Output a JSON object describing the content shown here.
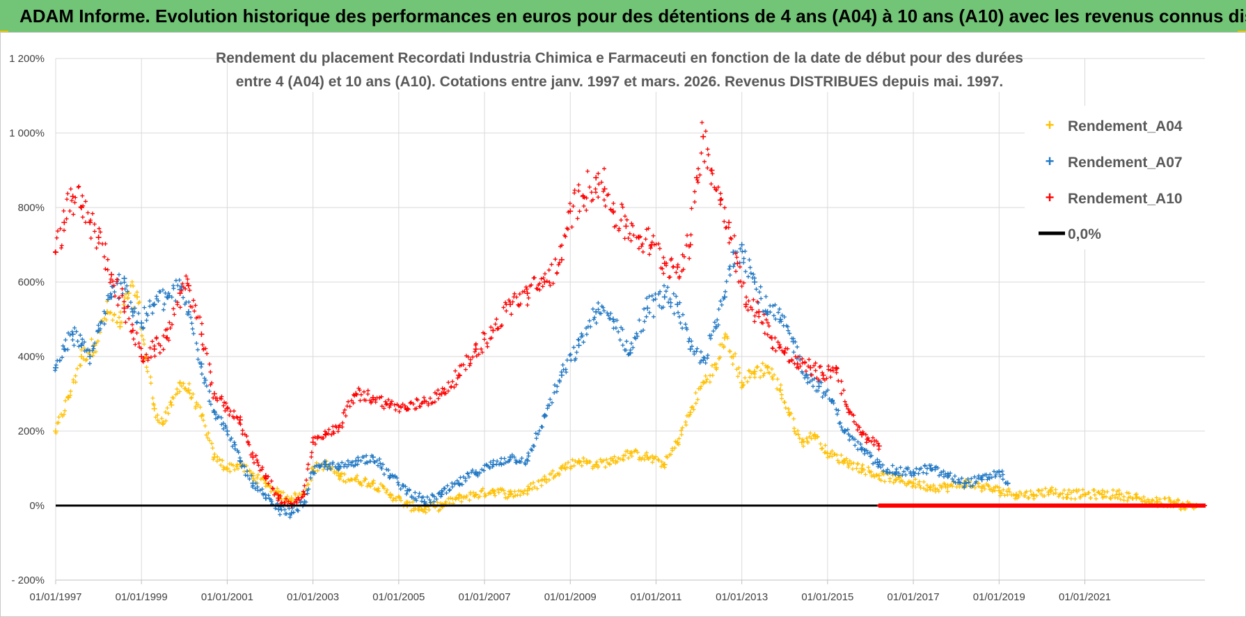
{
  "banner": {
    "title": "ADAM Informe. Evolution historique des performances en euros pour des détentions de 4 ans (A04) à 10 ans (A10) avec les revenus connus distribués",
    "color": "#72c476"
  },
  "chart_data": {
    "type": "scatter",
    "title": [
      "Rendement du placement Recordati Industria Chimica e Farmaceuti en fonction de la date de début pour des durées",
      "entre 4 (A04) et 10 ans (A10).  Cotations entre janv. 1997 et mars. 2026.  Revenus DISTRIBUES depuis mai. 1997."
    ],
    "xlabel": "",
    "ylabel": "",
    "x_range": [
      1997.0,
      2023.8
    ],
    "ylim": [
      -200,
      1200
    ],
    "y_ticks": [
      -200,
      0,
      200,
      400,
      600,
      800,
      1000,
      1200
    ],
    "y_tick_labels": [
      "- 200%",
      "0%",
      "200%",
      "400%",
      "600%",
      "800%",
      "1 000%",
      "1 200%"
    ],
    "x_ticks": [
      1997,
      1999,
      2001,
      2003,
      2005,
      2007,
      2009,
      2011,
      2013,
      2015,
      2017,
      2019,
      2021
    ],
    "x_tick_labels": [
      "01/01/1997",
      "01/01/1999",
      "01/01/2001",
      "01/01/2003",
      "01/01/2005",
      "01/01/2007",
      "01/01/2009",
      "01/01/2011",
      "01/01/2013",
      "01/01/2015",
      "01/01/2017",
      "01/01/2019",
      "01/01/2021"
    ],
    "grid": true,
    "legend_position": "top-right",
    "series": [
      {
        "name": "Rendement_A04",
        "color": "#ffc000",
        "marker": "plus",
        "x": [
          1997.0,
          1997.3,
          1997.6,
          1997.9,
          1998.2,
          1998.5,
          1998.7,
          1998.9,
          1999.1,
          1999.3,
          1999.5,
          1999.7,
          1999.9,
          2000.1,
          2000.4,
          2000.7,
          2001.0,
          2001.3,
          2001.6,
          2001.9,
          2002.2,
          2002.5,
          2002.8,
          2003.0,
          2003.3,
          2003.6,
          2004.0,
          2004.4,
          2004.8,
          2005.2,
          2005.6,
          2006.0,
          2006.4,
          2006.8,
          2007.2,
          2007.6,
          2008.0,
          2008.4,
          2008.8,
          2009.2,
          2009.6,
          2010.0,
          2010.4,
          2010.8,
          2011.2,
          2011.5,
          2011.8,
          2012.1,
          2012.4,
          2012.6,
          2012.8,
          2013.0,
          2013.3,
          2013.6,
          2013.9,
          2014.1,
          2014.4,
          2014.7,
          2015.0,
          2015.4,
          2015.8,
          2016.2,
          2016.6,
          2017.0,
          2017.4,
          2017.8,
          2018.2,
          2018.6,
          2019.0,
          2019.4,
          2019.8,
          2020.2,
          2020.6,
          2021.0,
          2021.4,
          2021.8,
          2022.2,
          2022.5,
          2022.7,
          2023.0,
          2023.3,
          2023.6
        ],
        "y": [
          200,
          290,
          400,
          430,
          520,
          480,
          570,
          560,
          400,
          260,
          220,
          270,
          330,
          310,
          240,
          130,
          100,
          110,
          80,
          60,
          30,
          20,
          30,
          100,
          110,
          80,
          70,
          60,
          30,
          0,
          -10,
          0,
          20,
          30,
          40,
          30,
          40,
          70,
          100,
          120,
          110,
          120,
          140,
          130,
          110,
          170,
          250,
          330,
          370,
          450,
          400,
          330,
          360,
          370,
          310,
          250,
          170,
          190,
          140,
          120,
          100,
          80,
          70,
          60,
          50,
          50,
          60,
          50,
          40,
          30,
          30,
          40,
          30,
          30,
          30,
          30,
          20,
          10,
          10,
          10,
          0,
          0
        ]
      },
      {
        "name": "Rendement_A07",
        "color": "#1f77c4",
        "marker": "plus",
        "x": [
          1997.0,
          1997.2,
          1997.4,
          1997.6,
          1997.8,
          1998.0,
          1998.3,
          1998.6,
          1998.8,
          1999.0,
          1999.3,
          1999.6,
          1999.9,
          2000.1,
          2000.4,
          2000.7,
          2001.0,
          2001.3,
          2001.6,
          2001.9,
          2002.2,
          2002.5,
          2002.8,
          2003.0,
          2003.3,
          2003.6,
          2004.0,
          2004.4,
          2004.8,
          2005.2,
          2005.6,
          2006.0,
          2006.4,
          2006.8,
          2007.2,
          2007.6,
          2008.0,
          2008.4,
          2008.8,
          2009.2,
          2009.6,
          2010.0,
          2010.4,
          2010.8,
          2011.2,
          2011.5,
          2011.8,
          2012.1,
          2012.4,
          2012.6,
          2012.8,
          2013.0,
          2013.3,
          2013.6,
          2013.9,
          2014.2,
          2014.5,
          2014.8,
          2015.1,
          2015.4,
          2015.8,
          2016.2,
          2016.6,
          2017.0,
          2017.4,
          2017.8,
          2018.2,
          2018.6,
          2019.0,
          2019.2
        ],
        "y": [
          370,
          420,
          460,
          430,
          400,
          470,
          560,
          610,
          520,
          490,
          540,
          560,
          580,
          520,
          380,
          250,
          200,
          120,
          60,
          20,
          -10,
          -20,
          10,
          90,
          110,
          100,
          120,
          130,
          80,
          40,
          10,
          30,
          60,
          90,
          110,
          130,
          120,
          240,
          350,
          430,
          520,
          500,
          410,
          530,
          560,
          540,
          420,
          390,
          480,
          560,
          680,
          700,
          600,
          520,
          500,
          440,
          350,
          320,
          280,
          200,
          150,
          110,
          90,
          90,
          100,
          80,
          60,
          70,
          90,
          60
        ]
      },
      {
        "name": "Rendement_A10",
        "color": "#ff0000",
        "marker": "plus",
        "x": [
          1997.0,
          1997.2,
          1997.4,
          1997.6,
          1997.8,
          1998.0,
          1998.3,
          1998.6,
          1998.8,
          1999.0,
          1999.3,
          1999.6,
          1999.9,
          2000.1,
          2000.4,
          2000.7,
          2001.0,
          2001.3,
          2001.6,
          2001.9,
          2002.2,
          2002.5,
          2002.8,
          2003.0,
          2003.3,
          2003.6,
          2004.0,
          2004.4,
          2004.8,
          2005.2,
          2005.6,
          2006.0,
          2006.4,
          2006.8,
          2007.2,
          2007.6,
          2008.0,
          2008.4,
          2008.8,
          2009.0,
          2009.3,
          2009.6,
          2009.8,
          2010.0,
          2010.3,
          2010.6,
          2010.9,
          2011.2,
          2011.5,
          2011.8,
          2011.95,
          2012.1,
          2012.3,
          2012.5,
          2012.7,
          2012.9,
          2013.1,
          2013.4,
          2013.7,
          2014.0,
          2014.3,
          2014.6,
          2014.9,
          2015.2,
          2015.5,
          2015.8,
          2016.2
        ],
        "y": [
          680,
          760,
          830,
          800,
          760,
          720,
          620,
          530,
          470,
          400,
          420,
          450,
          570,
          590,
          460,
          300,
          260,
          230,
          130,
          80,
          20,
          0,
          30,
          170,
          190,
          210,
          300,
          290,
          270,
          260,
          280,
          300,
          350,
          420,
          470,
          540,
          570,
          600,
          660,
          790,
          830,
          880,
          850,
          790,
          750,
          720,
          700,
          650,
          640,
          700,
          880,
          990,
          900,
          820,
          760,
          650,
          540,
          520,
          450,
          410,
          380,
          370,
          350,
          370,
          250,
          190,
          160
        ]
      }
    ],
    "reference_line": {
      "name": "0,0%",
      "value": 0,
      "color": "#000000"
    },
    "legend": [
      "Rendement_A04",
      "Rendement_A07",
      "Rendement_A10",
      "0,0%"
    ]
  }
}
